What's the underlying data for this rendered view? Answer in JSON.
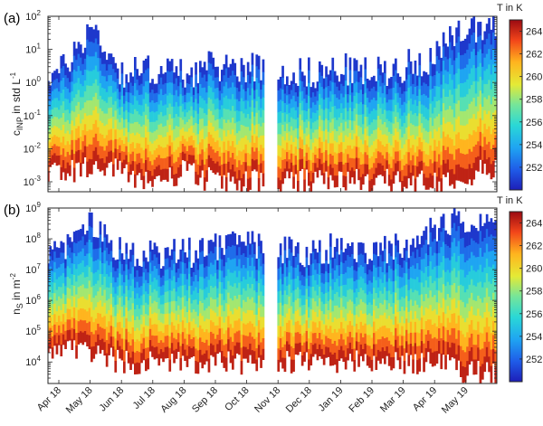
{
  "chart_data": [
    {
      "type": "heatmap",
      "panel_label": "(a)",
      "ylabel_main": "c",
      "ylabel_sub": "INP",
      "ylabel_rest": " in std L",
      "ylabel_sup": "-1",
      "y_scale": "log",
      "y_range": [
        0.0005,
        100
      ],
      "y_ticks": [
        {
          "value": 0.001,
          "base": "10",
          "exp": "-3"
        },
        {
          "value": 0.01,
          "base": "10",
          "exp": "-2"
        },
        {
          "value": 0.1,
          "base": "10",
          "exp": "-1"
        },
        {
          "value": 1,
          "base": "10",
          "exp": "0"
        },
        {
          "value": 10,
          "base": "10",
          "exp": "1"
        },
        {
          "value": 100,
          "base": "10",
          "exp": "2"
        }
      ],
      "colorbar_title": "T in K",
      "colorbar_range": [
        250,
        265
      ],
      "colorbar_ticks": [
        "252",
        "254",
        "256",
        "258",
        "260",
        "262",
        "264"
      ],
      "x_months": [
        "Apr 18",
        "May 18",
        "Jun 18",
        "Jul 18",
        "Aug 18",
        "Sep 18",
        "Oct 18",
        "Nov 18",
        "Dec 18",
        "Jan 19",
        "Feb 19",
        "Mar 19",
        "Apr 19",
        "May 19"
      ],
      "data_gap": [
        "Oct 18",
        "Nov 18"
      ],
      "approx_columns": [
        {
          "x": "Apr 18",
          "y_top": 3,
          "y_bottom": 0.002
        },
        {
          "x": "May 18",
          "y_top": 80,
          "y_bottom": 0.003
        },
        {
          "x": "Jun 18",
          "y_top": 3,
          "y_bottom": 0.002
        },
        {
          "x": "Jul 18",
          "y_top": 4,
          "y_bottom": 0.001
        },
        {
          "x": "Aug 18",
          "y_top": 3,
          "y_bottom": 0.002
        },
        {
          "x": "Sep 18",
          "y_top": 5,
          "y_bottom": 0.001
        },
        {
          "x": "Oct 18",
          "y_top": 5,
          "y_bottom": 0.001
        },
        {
          "x": "Dec 18",
          "y_top": 3,
          "y_bottom": 0.001
        },
        {
          "x": "Jan 19",
          "y_top": 4,
          "y_bottom": 0.001
        },
        {
          "x": "Feb 19",
          "y_top": 3,
          "y_bottom": 0.001
        },
        {
          "x": "Mar 19",
          "y_top": 5,
          "y_bottom": 0.001
        },
        {
          "x": "Apr 19",
          "y_top": 10,
          "y_bottom": 0.001
        },
        {
          "x": "May 19",
          "y_top": 80,
          "y_bottom": 0.002
        }
      ]
    },
    {
      "type": "heatmap",
      "panel_label": "(b)",
      "ylabel_main": "n",
      "ylabel_sub": "S",
      "ylabel_rest": " in m",
      "ylabel_sup": "-2",
      "y_scale": "log",
      "y_range": [
        2000,
        1000000000
      ],
      "y_ticks": [
        {
          "value": 10000,
          "base": "10",
          "exp": "4"
        },
        {
          "value": 100000,
          "base": "10",
          "exp": "5"
        },
        {
          "value": 1000000,
          "base": "10",
          "exp": "6"
        },
        {
          "value": 10000000,
          "base": "10",
          "exp": "7"
        },
        {
          "value": 100000000,
          "base": "10",
          "exp": "8"
        },
        {
          "value": 1000000000,
          "base": "10",
          "exp": "9"
        }
      ],
      "colorbar_title": "T in K",
      "colorbar_range": [
        250,
        265
      ],
      "colorbar_ticks": [
        "252",
        "254",
        "256",
        "258",
        "260",
        "262",
        "264"
      ],
      "x_months": [
        "Apr 18",
        "May 18",
        "Jun 18",
        "Jul 18",
        "Aug 18",
        "Sep 18",
        "Oct 18",
        "Nov 18",
        "Dec 18",
        "Jan 19",
        "Feb 19",
        "Mar 19",
        "Apr 19",
        "May 19"
      ],
      "data_gap": [
        "Oct 18",
        "Nov 18"
      ],
      "approx_columns": [
        {
          "x": "Apr 18",
          "y_top": 50000000,
          "y_bottom": 30000
        },
        {
          "x": "May 18",
          "y_top": 500000000,
          "y_bottom": 20000
        },
        {
          "x": "Jun 18",
          "y_top": 50000000,
          "y_bottom": 10000
        },
        {
          "x": "Jul 18",
          "y_top": 50000000,
          "y_bottom": 10000
        },
        {
          "x": "Aug 18",
          "y_top": 50000000,
          "y_bottom": 10000
        },
        {
          "x": "Sep 18",
          "y_top": 100000000,
          "y_bottom": 10000
        },
        {
          "x": "Oct 18",
          "y_top": 100000000,
          "y_bottom": 10000
        },
        {
          "x": "Dec 18",
          "y_top": 50000000,
          "y_bottom": 10000
        },
        {
          "x": "Jan 19",
          "y_top": 100000000,
          "y_bottom": 10000
        },
        {
          "x": "Feb 19",
          "y_top": 50000000,
          "y_bottom": 10000
        },
        {
          "x": "Mar 19",
          "y_top": 100000000,
          "y_bottom": 10000
        },
        {
          "x": "Apr 19",
          "y_top": 300000000,
          "y_bottom": 10000
        },
        {
          "x": "May 19",
          "y_top": 800000000,
          "y_bottom": 5000
        }
      ]
    }
  ]
}
